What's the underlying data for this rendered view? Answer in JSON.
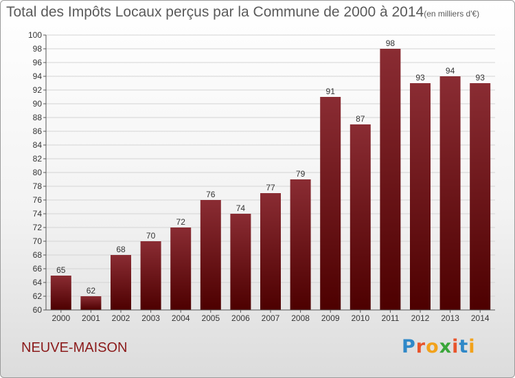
{
  "chart_data": {
    "type": "bar",
    "title": "Total des Impôts Locaux perçus par la Commune de 2000 à 2014",
    "subtitle": "(en milliers d'€)",
    "categories": [
      "2000",
      "2001",
      "2002",
      "2003",
      "2004",
      "2005",
      "2006",
      "2007",
      "2008",
      "2009",
      "2010",
      "2011",
      "2012",
      "2013",
      "2014"
    ],
    "values": [
      65,
      62,
      68,
      70,
      72,
      76,
      74,
      77,
      79,
      91,
      87,
      98,
      93,
      94,
      93
    ],
    "ylim": [
      60,
      100
    ],
    "yticks": [
      60,
      62,
      64,
      66,
      68,
      70,
      72,
      74,
      76,
      78,
      80,
      82,
      84,
      86,
      88,
      90,
      92,
      94,
      96,
      98,
      100
    ],
    "grid": true,
    "bar_color": "#7d1a1f"
  },
  "footer": {
    "commune": "NEUVE-MAISON",
    "logo": {
      "letters": [
        "P",
        "r",
        "o",
        "x",
        "i",
        "t",
        "i"
      ],
      "colors": [
        "#2f88c8",
        "#e8542b",
        "#f2a21b",
        "#3aa63a",
        "#e8542b",
        "#2f88c8",
        "#f2a21b"
      ]
    }
  }
}
